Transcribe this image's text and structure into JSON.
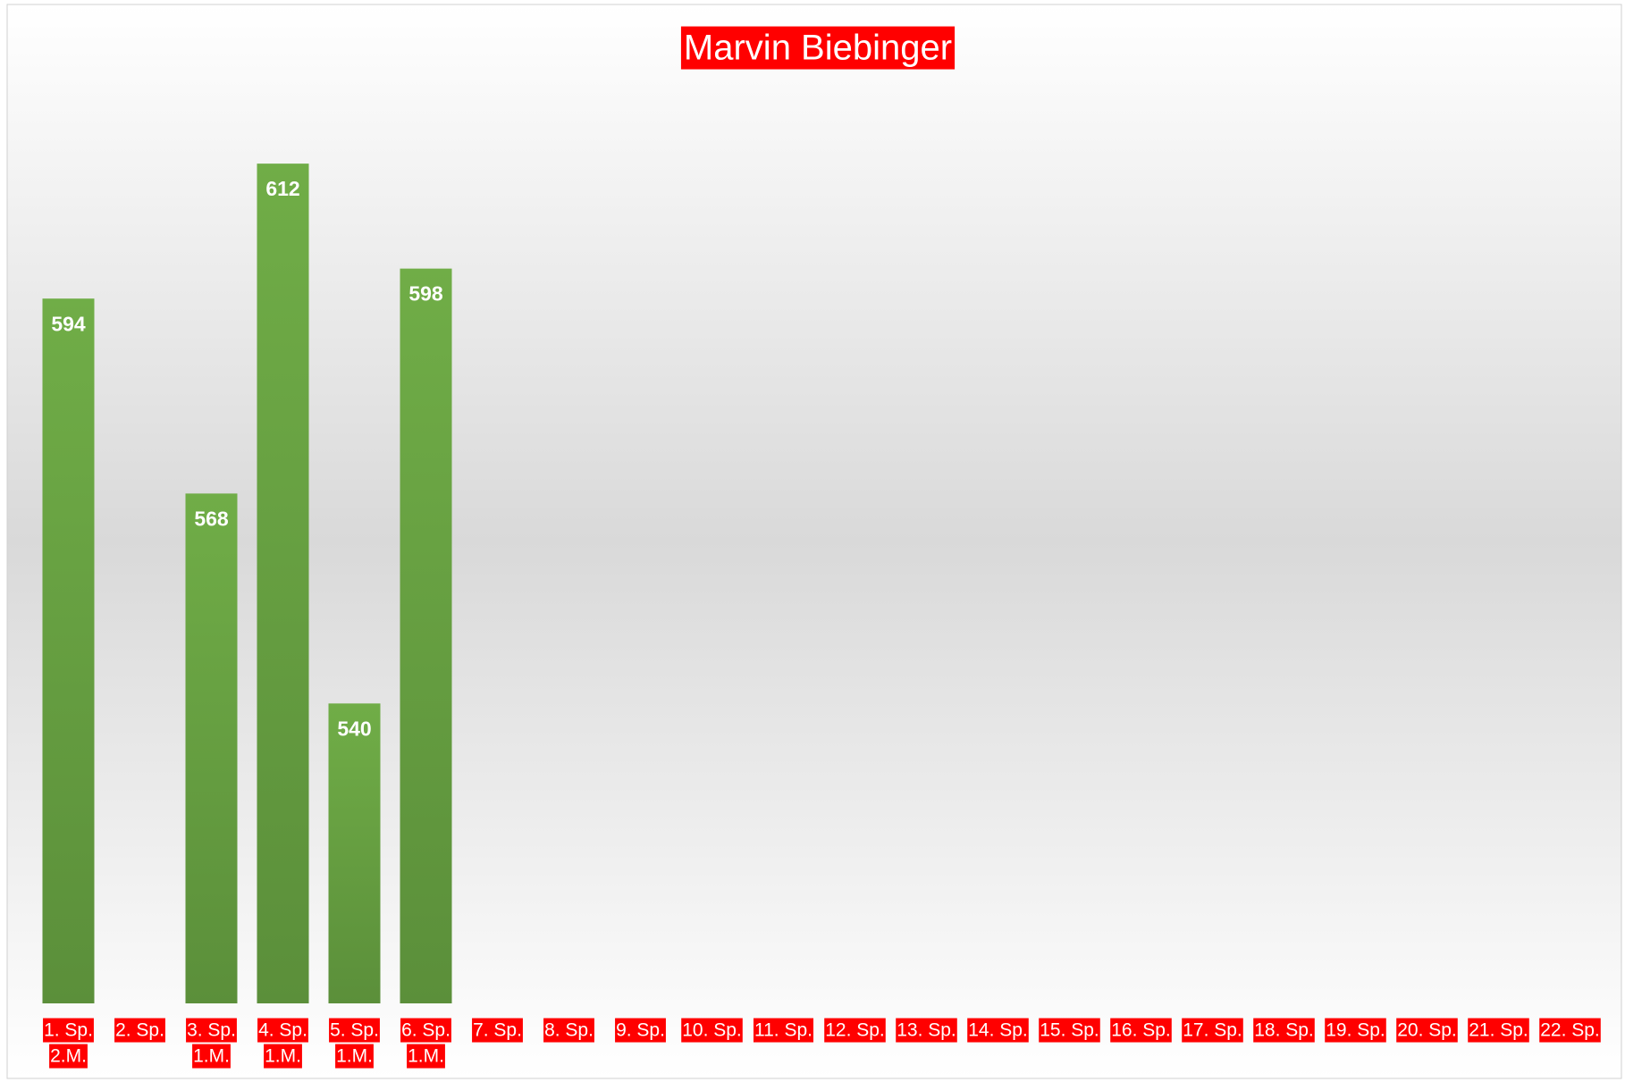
{
  "chart_data": {
    "type": "bar",
    "title": "Marvin Biebinger",
    "categories": [
      [
        "1. Sp.",
        "2.M."
      ],
      [
        "2. Sp."
      ],
      [
        "3. Sp.",
        "1.M."
      ],
      [
        "4. Sp.",
        "1.M."
      ],
      [
        "5. Sp.",
        "1.M."
      ],
      [
        "6. Sp.",
        "1.M."
      ],
      [
        "7. Sp."
      ],
      [
        "8. Sp."
      ],
      [
        "9. Sp."
      ],
      [
        "10. Sp."
      ],
      [
        "11. Sp."
      ],
      [
        "12. Sp."
      ],
      [
        "13. Sp."
      ],
      [
        "14. Sp."
      ],
      [
        "15. Sp."
      ],
      [
        "16. Sp."
      ],
      [
        "17. Sp."
      ],
      [
        "18. Sp."
      ],
      [
        "19. Sp."
      ],
      [
        "20. Sp."
      ],
      [
        "21. Sp."
      ],
      [
        "22. Sp."
      ]
    ],
    "values": [
      594,
      null,
      568,
      612,
      540,
      598,
      null,
      null,
      null,
      null,
      null,
      null,
      null,
      null,
      null,
      null,
      null,
      null,
      null,
      null,
      null,
      null
    ],
    "color": "#6aa646",
    "label_background": "#ff0000",
    "ylim": [
      500,
      620
    ]
  }
}
